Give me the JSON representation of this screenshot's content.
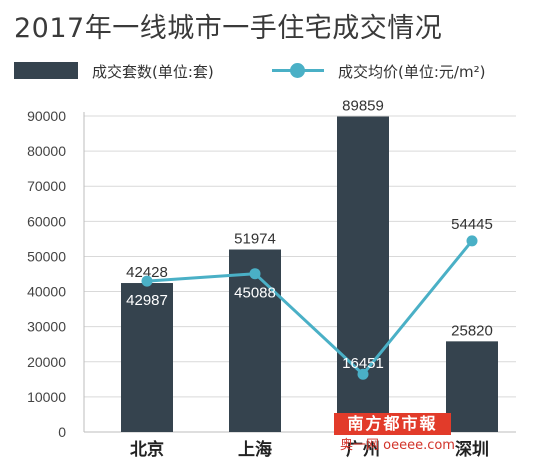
{
  "chart_data": {
    "type": "bar",
    "title": "2017年一线城市一手住宅成交情况",
    "categories": [
      "北京",
      "上海",
      "广州",
      "深圳"
    ],
    "series": [
      {
        "name": "成交套数(单位:套)",
        "kind": "bar",
        "values": [
          42428,
          51974,
          89859,
          25820
        ]
      },
      {
        "name": "成交均价(单位:元/m²)",
        "kind": "line",
        "values": [
          42987,
          45088,
          16451,
          54445
        ]
      }
    ],
    "ylim": [
      0,
      90000
    ],
    "yticks": [
      0,
      10000,
      20000,
      30000,
      40000,
      50000,
      60000,
      70000,
      80000,
      90000
    ],
    "xlabel": "",
    "ylabel": "",
    "grid": true,
    "legend_position": "top",
    "colors": {
      "bar": "#35434e",
      "line": "#4ab0c6",
      "watermark": "#e23b2a"
    }
  },
  "legend": {
    "bar_label": "成交套数(单位:套)",
    "line_label": "成交均价(单位:元/m²)"
  },
  "watermark": {
    "main": "南方都市報",
    "sub": "奥一网 oeeee.com"
  }
}
